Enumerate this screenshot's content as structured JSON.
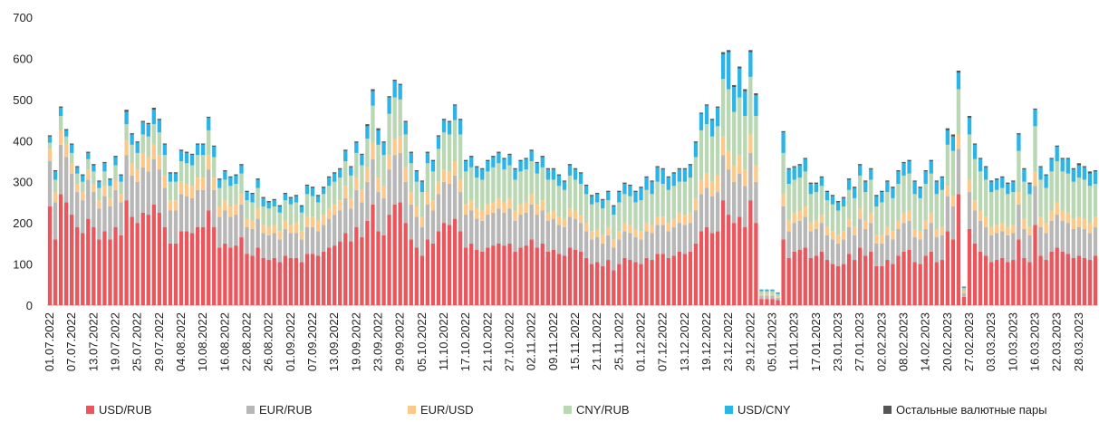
{
  "chart_data": {
    "type": "stacked_bar",
    "categories": [
      "01.07.2022",
      null,
      null,
      null,
      "07.07.2022",
      null,
      null,
      null,
      "13.07.2022",
      null,
      null,
      null,
      "19.07.2022",
      null,
      null,
      null,
      "25.07.2022",
      null,
      null,
      null,
      "29.07.2022",
      null,
      null,
      null,
      "04.08.2022",
      null,
      null,
      null,
      "10.08.2022",
      null,
      null,
      null,
      "16.08.2022",
      null,
      null,
      null,
      "22.08.2022",
      null,
      null,
      null,
      "26.08.2022",
      null,
      null,
      null,
      "01.09.2022",
      null,
      null,
      null,
      "07.09.2022",
      null,
      null,
      null,
      "13.09.2022",
      null,
      null,
      null,
      "19.09.2022",
      null,
      null,
      null,
      "23.09.2022",
      null,
      null,
      null,
      "29.09.2022",
      null,
      null,
      null,
      "05.10.2022",
      null,
      null,
      null,
      "11.10.2022",
      null,
      null,
      null,
      "17.10.2022",
      null,
      null,
      null,
      "21.10.2022",
      null,
      null,
      null,
      "27.10.2022",
      null,
      null,
      null,
      "02.11.2022",
      null,
      null,
      null,
      "09.11.2022",
      null,
      null,
      null,
      "15.11.2022",
      null,
      null,
      null,
      "21.11.2022",
      null,
      null,
      null,
      "25.11.2022",
      null,
      null,
      null,
      "01.12.2022",
      null,
      null,
      null,
      "07.12.2022",
      null,
      null,
      null,
      "13.12.2022",
      null,
      null,
      null,
      "19.12.2022",
      null,
      null,
      null,
      "23.12.2022",
      null,
      null,
      null,
      "29.12.2022",
      null,
      null,
      null,
      "05.01.2023",
      null,
      null,
      null,
      "11.01.2023",
      null,
      null,
      null,
      "17.01.2023",
      null,
      null,
      null,
      "23.01.2023",
      null,
      null,
      null,
      "27.01.2023",
      null,
      null,
      null,
      "02.02.2023",
      null,
      null,
      null,
      "08.02.2023",
      null,
      null,
      null,
      "14.02.2023",
      null,
      null,
      null,
      "20.02.2023",
      null,
      null,
      null,
      "27.02.2023",
      null,
      null,
      null,
      "03.03.2023",
      null,
      null,
      null,
      "10.03.2023",
      null,
      null,
      null,
      "16.03.2023",
      null,
      null,
      null,
      "22.03.2023",
      null,
      null,
      null,
      "28.03.2023",
      null,
      null,
      null
    ],
    "series": [
      {
        "name": "USD/RUB",
        "color": "#e9575d",
        "values": [
          240,
          160,
          270,
          250,
          220,
          190,
          175,
          210,
          190,
          160,
          180,
          160,
          190,
          170,
          255,
          215,
          200,
          225,
          220,
          245,
          225,
          190,
          150,
          150,
          180,
          180,
          175,
          190,
          190,
          230,
          190,
          140,
          150,
          140,
          145,
          165,
          125,
          120,
          140,
          115,
          110,
          115,
          105,
          120,
          115,
          115,
          105,
          125,
          125,
          120,
          130,
          140,
          145,
          155,
          175,
          155,
          190,
          165,
          205,
          245,
          180,
          170,
          220,
          245,
          250,
          200,
          160,
          140,
          120,
          160,
          150,
          180,
          200,
          195,
          210,
          180,
          140,
          150,
          135,
          130,
          140,
          145,
          150,
          145,
          150,
          130,
          140,
          145,
          160,
          140,
          150,
          130,
          135,
          125,
          120,
          140,
          135,
          130,
          115,
          100,
          105,
          95,
          110,
          85,
          100,
          115,
          110,
          105,
          100,
          115,
          110,
          125,
          125,
          115,
          120,
          130,
          125,
          130,
          150,
          180,
          190,
          175,
          180,
          255,
          220,
          200,
          215,
          190,
          255,
          200,
          15,
          15,
          15,
          12,
          160,
          115,
          130,
          135,
          140,
          115,
          120,
          130,
          110,
          100,
          95,
          100,
          125,
          110,
          140,
          120,
          130,
          95,
          95,
          110,
          100,
          120,
          130,
          135,
          105,
          100,
          120,
          130,
          105,
          110,
          180,
          160,
          270,
          20,
          185,
          150,
          130,
          120,
          105,
          110,
          115,
          105,
          110,
          160,
          115,
          105,
          195,
          120,
          110,
          130,
          140,
          130,
          125,
          115,
          120,
          115,
          110,
          120
        ]
      },
      {
        "name": "EUR/RUB",
        "color": "#b7b7b7",
        "values": [
          110,
          90,
          120,
          110,
          100,
          85,
          80,
          95,
          85,
          75,
          85,
          80,
          90,
          80,
          110,
          100,
          100,
          110,
          105,
          110,
          105,
          95,
          80,
          80,
          90,
          85,
          85,
          90,
          90,
          100,
          90,
          75,
          80,
          75,
          75,
          80,
          65,
          65,
          70,
          60,
          60,
          60,
          55,
          65,
          60,
          60,
          55,
          65,
          65,
          60,
          65,
          70,
          75,
          75,
          85,
          80,
          90,
          85,
          95,
          110,
          95,
          90,
          110,
          120,
          120,
          100,
          85,
          75,
          70,
          85,
          80,
          90,
          100,
          100,
          105,
          95,
          80,
          80,
          75,
          75,
          80,
          80,
          85,
          80,
          85,
          75,
          80,
          80,
          85,
          80,
          80,
          75,
          75,
          70,
          70,
          75,
          75,
          70,
          65,
          60,
          60,
          55,
          60,
          55,
          60,
          65,
          65,
          60,
          60,
          65,
          65,
          70,
          70,
          65,
          70,
          70,
          70,
          70,
          80,
          90,
          95,
          90,
          95,
          110,
          110,
          100,
          105,
          100,
          115,
          100,
          8,
          8,
          8,
          6,
          80,
          65,
          70,
          70,
          75,
          65,
          65,
          70,
          60,
          60,
          55,
          60,
          65,
          60,
          70,
          65,
          70,
          55,
          55,
          60,
          60,
          65,
          70,
          70,
          60,
          60,
          65,
          70,
          60,
          60,
          85,
          80,
          110,
          10,
          90,
          80,
          75,
          70,
          65,
          65,
          65,
          65,
          65,
          85,
          70,
          65,
          95,
          70,
          65,
          75,
          80,
          75,
          75,
          70,
          70,
          70,
          65,
          70
        ]
      },
      {
        "name": "EUR/USD",
        "color": "#fcc98b",
        "values": [
          30,
          25,
          35,
          30,
          25,
          20,
          20,
          25,
          20,
          20,
          25,
          20,
          25,
          20,
          35,
          30,
          30,
          35,
          35,
          35,
          35,
          30,
          25,
          25,
          30,
          30,
          30,
          30,
          30,
          35,
          30,
          25,
          25,
          25,
          25,
          25,
          20,
          20,
          25,
          20,
          20,
          20,
          20,
          20,
          20,
          25,
          20,
          25,
          25,
          25,
          25,
          25,
          25,
          25,
          30,
          25,
          30,
          30,
          35,
          40,
          35,
          30,
          35,
          40,
          40,
          35,
          30,
          25,
          25,
          30,
          25,
          30,
          30,
          30,
          35,
          30,
          25,
          25,
          25,
          25,
          25,
          25,
          25,
          25,
          25,
          25,
          25,
          25,
          25,
          25,
          25,
          20,
          20,
          20,
          20,
          20,
          20,
          20,
          20,
          20,
          20,
          20,
          20,
          20,
          20,
          20,
          20,
          20,
          20,
          20,
          20,
          20,
          20,
          20,
          20,
          25,
          25,
          25,
          30,
          35,
          35,
          35,
          40,
          45,
          45,
          40,
          45,
          40,
          45,
          40,
          3,
          3,
          3,
          3,
          30,
          25,
          25,
          25,
          25,
          20,
          20,
          20,
          20,
          20,
          20,
          20,
          20,
          20,
          25,
          20,
          25,
          20,
          20,
          20,
          20,
          20,
          25,
          25,
          20,
          20,
          20,
          25,
          20,
          20,
          25,
          25,
          35,
          3,
          30,
          25,
          25,
          25,
          20,
          20,
          20,
          20,
          20,
          30,
          25,
          20,
          35,
          25,
          25,
          25,
          30,
          25,
          25,
          25,
          25,
          25,
          25,
          25
        ]
      },
      {
        "name": "CNY/RUB",
        "color": "#b8d7b2",
        "values": [
          15,
          30,
          35,
          20,
          25,
          25,
          25,
          25,
          30,
          30,
          35,
          30,
          35,
          30,
          40,
          45,
          40,
          45,
          50,
          50,
          55,
          50,
          45,
          45,
          50,
          50,
          50,
          55,
          55,
          60,
          50,
          45,
          50,
          50,
          50,
          50,
          45,
          45,
          50,
          45,
          45,
          45,
          45,
          50,
          50,
          50,
          45,
          55,
          50,
          45,
          50,
          55,
          55,
          55,
          60,
          55,
          60,
          60,
          70,
          90,
          80,
          75,
          100,
          100,
          90,
          80,
          70,
          60,
          60,
          70,
          70,
          80,
          90,
          90,
          100,
          110,
          80,
          80,
          75,
          75,
          80,
          85,
          85,
          80,
          80,
          75,
          80,
          80,
          80,
          75,
          80,
          80,
          75,
          75,
          70,
          80,
          75,
          75,
          70,
          65,
          65,
          65,
          65,
          60,
          70,
          70,
          70,
          65,
          75,
          80,
          75,
          85,
          80,
          80,
          80,
          75,
          80,
          85,
          100,
          120,
          120,
          110,
          120,
          140,
          150,
          130,
          140,
          130,
          140,
          120,
          8,
          8,
          8,
          6,
          100,
          90,
          80,
          80,
          85,
          70,
          70,
          70,
          65,
          65,
          60,
          60,
          70,
          70,
          80,
          70,
          80,
          70,
          80,
          85,
          80,
          90,
          90,
          90,
          85,
          80,
          90,
          95,
          85,
          90,
          100,
          110,
          110,
          8,
          110,
          100,
          95,
          90,
          85,
          85,
          85,
          80,
          80,
          100,
          90,
          80,
          110,
          90,
          85,
          95,
          100,
          95,
          95,
          90,
          95,
          95,
          90,
          80
        ]
      },
      {
        "name": "USD/CNY",
        "color": "#2cb4e6",
        "values": [
          15,
          20,
          20,
          15,
          20,
          15,
          15,
          15,
          15,
          15,
          20,
          15,
          20,
          15,
          30,
          25,
          25,
          30,
          30,
          35,
          30,
          25,
          20,
          20,
          25,
          25,
          25,
          25,
          25,
          30,
          25,
          20,
          20,
          20,
          20,
          20,
          20,
          20,
          20,
          20,
          15,
          15,
          15,
          15,
          15,
          15,
          15,
          20,
          20,
          15,
          15,
          20,
          20,
          20,
          25,
          20,
          25,
          25,
          30,
          35,
          35,
          30,
          40,
          40,
          35,
          30,
          25,
          25,
          25,
          25,
          25,
          30,
          30,
          30,
          35,
          35,
          25,
          25,
          25,
          25,
          25,
          25,
          25,
          25,
          25,
          25,
          25,
          25,
          25,
          25,
          25,
          25,
          25,
          25,
          20,
          25,
          25,
          25,
          20,
          20,
          20,
          20,
          20,
          20,
          25,
          25,
          25,
          25,
          30,
          30,
          30,
          35,
          35,
          30,
          30,
          30,
          30,
          30,
          35,
          40,
          45,
          40,
          45,
          60,
          90,
          60,
          70,
          60,
          60,
          50,
          3,
          3,
          3,
          3,
          50,
          35,
          30,
          30,
          30,
          25,
          20,
          20,
          20,
          20,
          20,
          20,
          25,
          25,
          25,
          25,
          25,
          25,
          25,
          25,
          25,
          30,
          30,
          30,
          30,
          25,
          30,
          30,
          30,
          30,
          35,
          35,
          40,
          3,
          40,
          35,
          30,
          30,
          25,
          25,
          25,
          25,
          25,
          40,
          30,
          25,
          40,
          30,
          30,
          30,
          35,
          30,
          35,
          30,
          30,
          30,
          30,
          30
        ]
      },
      {
        "name": "Остальные валютные пары",
        "color": "#555555",
        "values": [
          3,
          3,
          3,
          3,
          3,
          3,
          3,
          3,
          3,
          3,
          3,
          3,
          3,
          3,
          5,
          3,
          3,
          3,
          3,
          5,
          3,
          3,
          3,
          3,
          3,
          3,
          3,
          3,
          3,
          3,
          3,
          3,
          3,
          3,
          3,
          3,
          3,
          3,
          3,
          3,
          3,
          3,
          3,
          3,
          3,
          3,
          3,
          3,
          3,
          3,
          3,
          3,
          3,
          3,
          3,
          3,
          3,
          3,
          5,
          5,
          5,
          3,
          3,
          3,
          3,
          3,
          3,
          3,
          3,
          3,
          3,
          3,
          3,
          3,
          3,
          3,
          3,
          3,
          3,
          3,
          3,
          3,
          3,
          3,
          3,
          3,
          3,
          3,
          3,
          3,
          3,
          3,
          3,
          3,
          3,
          3,
          3,
          3,
          3,
          3,
          3,
          3,
          3,
          3,
          3,
          3,
          3,
          3,
          3,
          3,
          3,
          3,
          3,
          3,
          3,
          3,
          3,
          3,
          3,
          3,
          3,
          3,
          3,
          5,
          5,
          5,
          5,
          5,
          5,
          5,
          1,
          1,
          1,
          1,
          3,
          3,
          3,
          3,
          3,
          3,
          3,
          3,
          3,
          3,
          3,
          3,
          3,
          3,
          3,
          3,
          3,
          3,
          3,
          3,
          3,
          3,
          3,
          3,
          3,
          3,
          3,
          3,
          3,
          3,
          5,
          5,
          5,
          1,
          5,
          3,
          3,
          3,
          3,
          3,
          3,
          3,
          3,
          3,
          3,
          3,
          3,
          3,
          3,
          3,
          3,
          3,
          3,
          3,
          5,
          3,
          5,
          3
        ]
      }
    ],
    "ylim": [
      0,
      700
    ],
    "yticks": [
      0,
      100,
      200,
      300,
      400,
      500,
      600,
      700
    ],
    "grid": false
  }
}
